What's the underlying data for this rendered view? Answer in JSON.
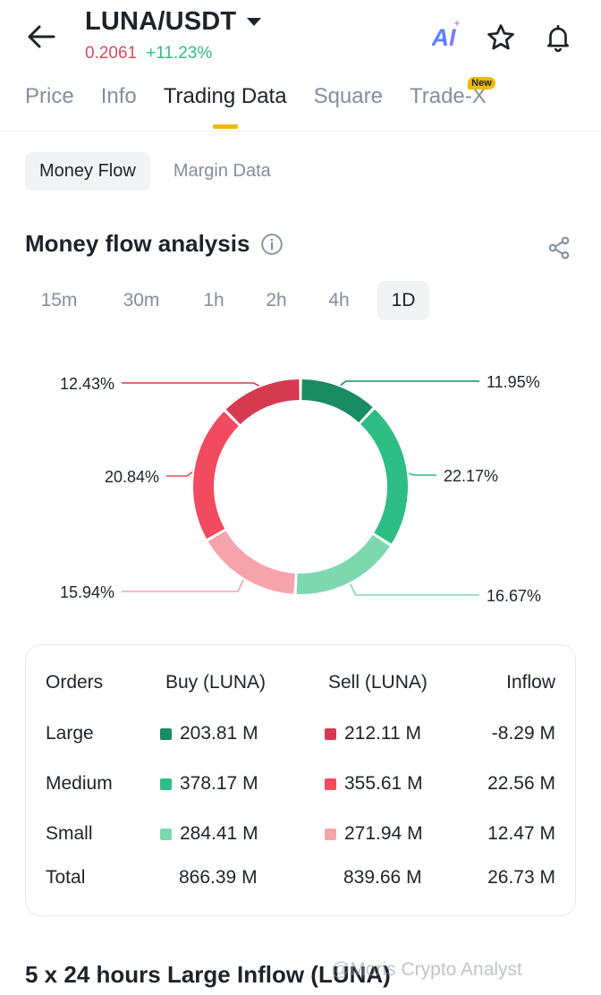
{
  "header": {
    "pair": "LUNA/USDT",
    "price": "0.2061",
    "change": "+11.23%",
    "ai_label": "AI"
  },
  "tabs": [
    {
      "label": "Price"
    },
    {
      "label": "Info"
    },
    {
      "label": "Trading Data"
    },
    {
      "label": "Square"
    },
    {
      "label": "Trade-X",
      "badge": "New"
    }
  ],
  "active_tab": "Trading Data",
  "subtabs": [
    {
      "label": "Money Flow"
    },
    {
      "label": "Margin Data"
    }
  ],
  "active_subtab": "Money Flow",
  "section": {
    "title": "Money flow analysis"
  },
  "ranges": [
    "15m",
    "30m",
    "1h",
    "2h",
    "4h",
    "1D"
  ],
  "active_range": "1D",
  "colors": {
    "buy_large": "#1a8c63",
    "buy_medium": "#2ebd85",
    "buy_small": "#7dd8b0",
    "sell_small": "#f7a3ab",
    "sell_medium": "#f24a5e",
    "sell_large": "#d63a51",
    "accent": "#f0b90b"
  },
  "chart_data": {
    "type": "pie",
    "donut": true,
    "slices": [
      {
        "category": "Buy Large",
        "value": 11.95,
        "label": "11.95%",
        "color": "#1a8c63"
      },
      {
        "category": "Buy Medium",
        "value": 22.17,
        "label": "22.17%",
        "color": "#2ebd85"
      },
      {
        "category": "Buy Small",
        "value": 16.67,
        "label": "16.67%",
        "color": "#7dd8b0"
      },
      {
        "category": "Sell Small",
        "value": 15.94,
        "label": "15.94%",
        "color": "#f7a3ab"
      },
      {
        "category": "Sell Medium",
        "value": 20.84,
        "label": "20.84%",
        "color": "#f24a5e"
      },
      {
        "category": "Sell Large",
        "value": 12.43,
        "label": "12.43%",
        "color": "#d63a51"
      }
    ]
  },
  "table": {
    "headers": {
      "orders": "Orders",
      "buy": "Buy (LUNA)",
      "sell": "Sell (LUNA)",
      "inflow": "Inflow"
    },
    "rows": [
      {
        "label": "Large",
        "buy": "203.81 M",
        "sell": "212.11 M",
        "inflow": "-8.29 M",
        "buy_color": "#1a8c63",
        "sell_color": "#d63a51"
      },
      {
        "label": "Medium",
        "buy": "378.17 M",
        "sell": "355.61 M",
        "inflow": "22.56 M",
        "buy_color": "#2ebd85",
        "sell_color": "#f24a5e"
      },
      {
        "label": "Small",
        "buy": "284.41 M",
        "sell": "271.94 M",
        "inflow": "12.47 M",
        "buy_color": "#7dd8b0",
        "sell_color": "#f7a3ab"
      }
    ],
    "total": {
      "label": "Total",
      "buy": "866.39 M",
      "sell": "839.66 M",
      "inflow": "26.73 M"
    }
  },
  "bottom_section": {
    "title": "5 x 24 hours Large Inflow (LUNA)"
  },
  "watermark": "@Moris Crypto Analyst"
}
